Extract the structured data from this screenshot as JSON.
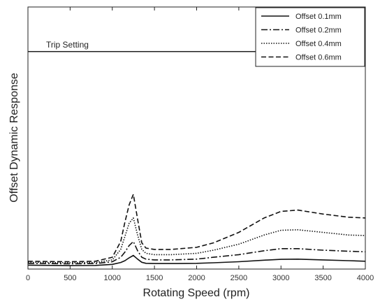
{
  "chart_data": {
    "type": "line",
    "title": "",
    "xlabel": "Rotating Speed (rpm)",
    "ylabel": "Offset Dynamic Response",
    "xlim": [
      0,
      4000
    ],
    "ylim": [
      0,
      100
    ],
    "xticks": [
      0,
      500,
      1000,
      1500,
      2000,
      2500,
      3000,
      3500,
      4000
    ],
    "grid": false,
    "legend_position": "top-right",
    "annotations": [
      {
        "text": "Trip Setting",
        "value": 83
      }
    ],
    "series": [
      {
        "name": "Offset 0.1mm",
        "style": "solid",
        "color": "#111111",
        "x": [
          0,
          500,
          800,
          1000,
          1100,
          1150,
          1200,
          1250,
          1300,
          1350,
          1400,
          1500,
          1700,
          2000,
          2200,
          2500,
          2800,
          3000,
          3200,
          3500,
          3800,
          4000
        ],
        "y": [
          1.5,
          1.3,
          1.4,
          1.8,
          2.5,
          3.2,
          4.3,
          5.2,
          3.8,
          2.6,
          2.2,
          2.1,
          2.1,
          2.2,
          2.4,
          2.8,
          3.4,
          3.7,
          3.8,
          3.5,
          3.2,
          3.0
        ]
      },
      {
        "name": "Offset 0.2mm",
        "style": "dashdot",
        "color": "#111111",
        "x": [
          0,
          500,
          800,
          1000,
          1100,
          1150,
          1200,
          1250,
          1300,
          1350,
          1400,
          1500,
          1700,
          2000,
          2200,
          2500,
          2800,
          3000,
          3200,
          3500,
          3800,
          4000
        ],
        "y": [
          2.2,
          2.0,
          2.1,
          2.8,
          4.5,
          6.5,
          9.0,
          10.5,
          7.0,
          4.5,
          3.8,
          3.5,
          3.5,
          3.8,
          4.5,
          5.5,
          7.0,
          7.8,
          7.8,
          7.2,
          6.8,
          6.6
        ]
      },
      {
        "name": "Offset 0.4mm",
        "style": "dotted",
        "color": "#111111",
        "x": [
          0,
          500,
          800,
          1000,
          1100,
          1150,
          1200,
          1250,
          1300,
          1350,
          1400,
          1500,
          1700,
          2000,
          2200,
          2500,
          2800,
          3000,
          3200,
          3500,
          3800,
          4000
        ],
        "y": [
          2.6,
          2.4,
          2.5,
          3.5,
          7.5,
          12.5,
          17.5,
          19.5,
          13.0,
          7.5,
          6.0,
          5.5,
          5.5,
          6.0,
          7.2,
          9.5,
          13.0,
          14.8,
          15.0,
          14.0,
          13.0,
          12.8
        ]
      },
      {
        "name": "Offset 0.6mm",
        "style": "dashed",
        "color": "#111111",
        "x": [
          0,
          500,
          800,
          1000,
          1100,
          1150,
          1200,
          1250,
          1300,
          1350,
          1400,
          1500,
          1700,
          2000,
          2200,
          2500,
          2800,
          3000,
          3200,
          3500,
          3800,
          4000
        ],
        "y": [
          3.0,
          2.8,
          3.0,
          4.5,
          10.5,
          18.0,
          24.5,
          28.5,
          19.0,
          10.0,
          8.0,
          7.5,
          7.5,
          8.3,
          10.0,
          14.0,
          19.5,
          22.0,
          22.5,
          21.0,
          19.8,
          19.5
        ]
      }
    ]
  }
}
